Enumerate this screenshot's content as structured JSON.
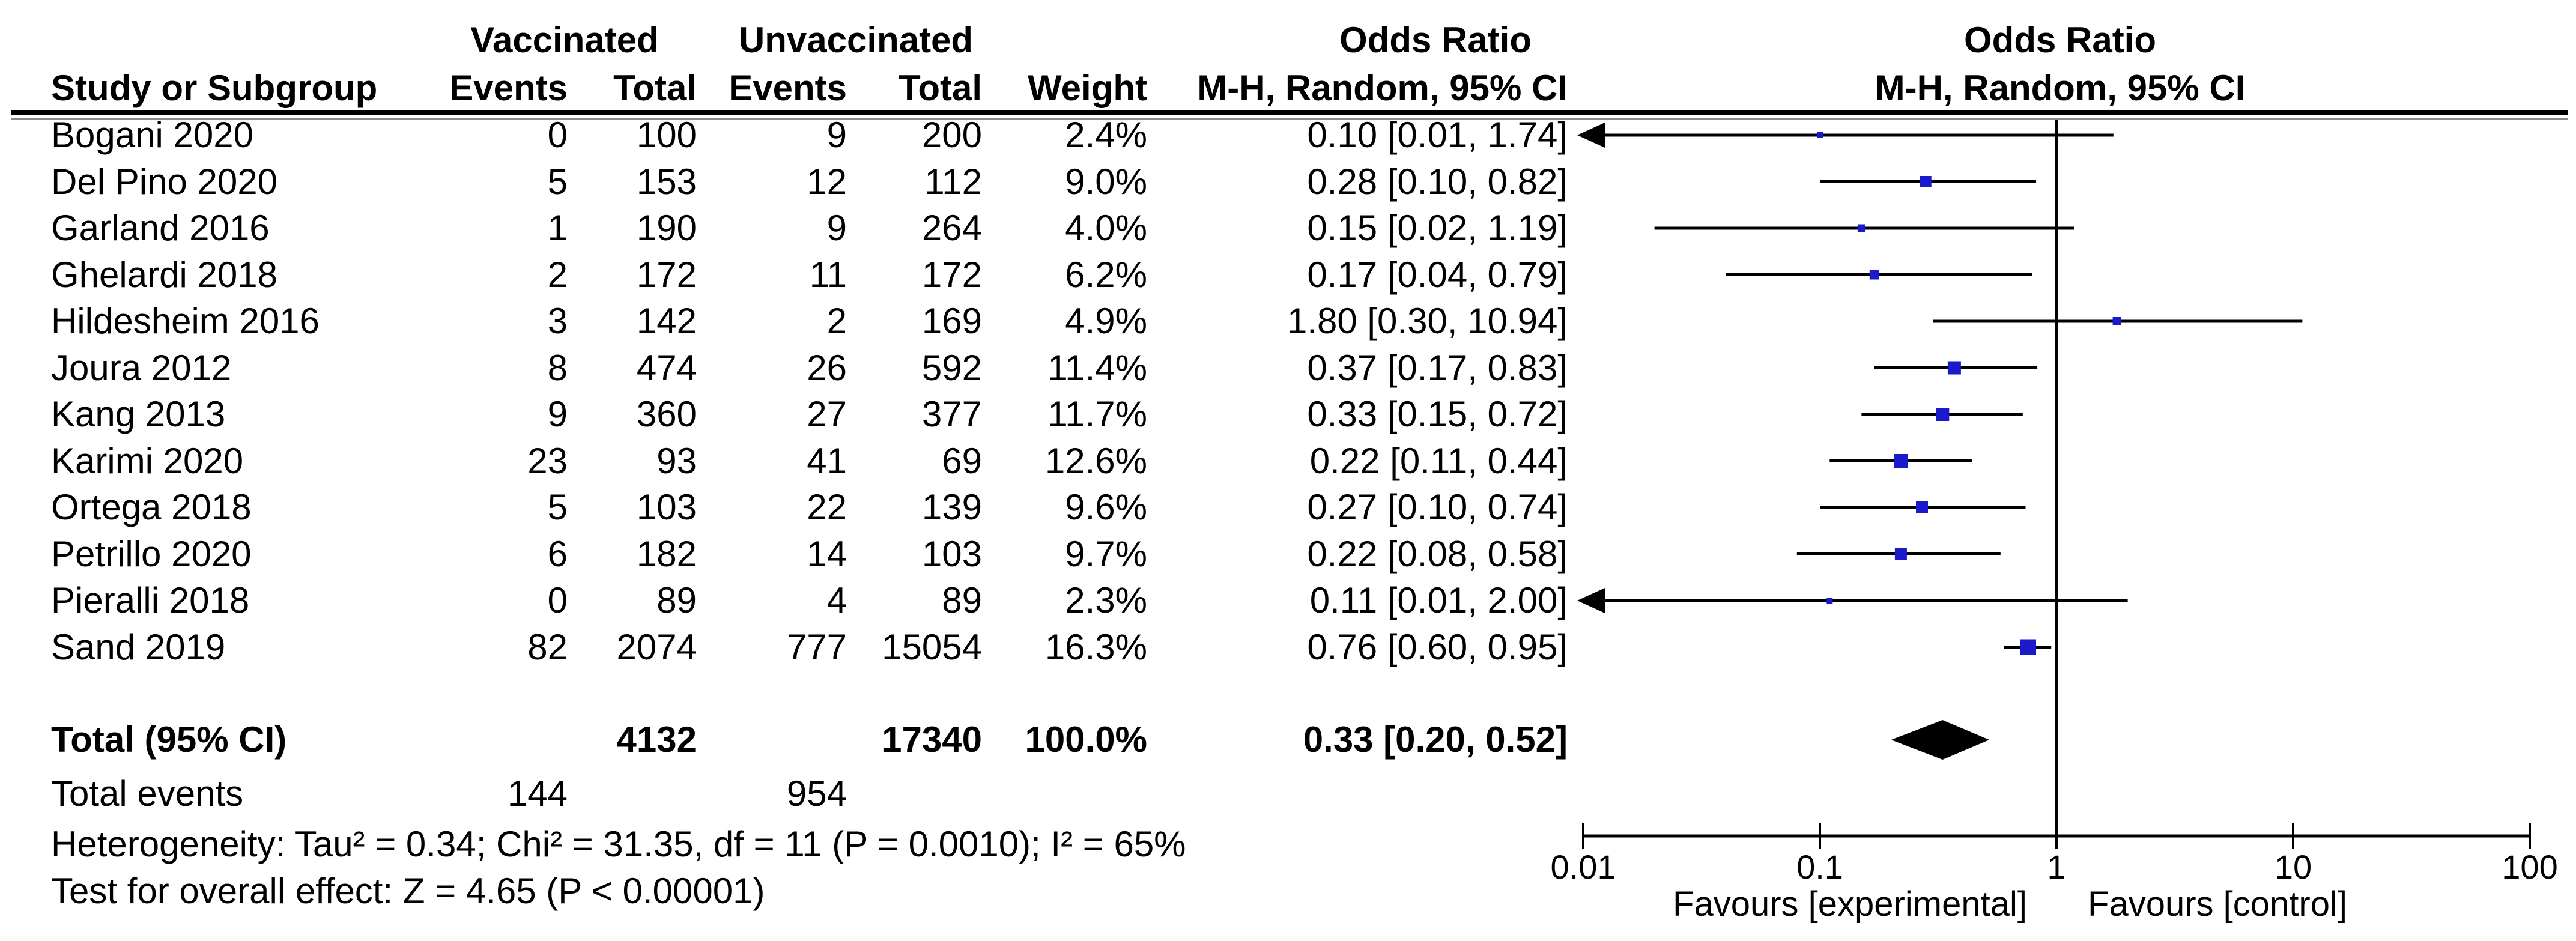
{
  "header": {
    "group1": "Vaccinated",
    "group2": "Unvaccinated",
    "study_col": "Study or Subgroup",
    "events_col_1": "Events",
    "total_col_1": "Total",
    "events_col_2": "Events",
    "total_col_2": "Total",
    "weight_col": "Weight",
    "or_col_title": "Odds Ratio",
    "or_col_sub": "M-H, Random, 95% CI",
    "plot_col_title": "Odds Ratio",
    "plot_col_sub": "M-H, Random, 95% CI"
  },
  "totals_row": {
    "label": "Total (95% CI)",
    "v_total": "4132",
    "u_total": "17340",
    "weight": "100.0%",
    "or_text": "0.33 [0.20, 0.52]"
  },
  "total_events_row": {
    "label": "Total events",
    "v_events": "144",
    "u_events": "954"
  },
  "footnotes": {
    "heterogeneity": "Heterogeneity: Tau² = 0.34; Chi² = 31.35, df = 11 (P = 0.0010); I² = 65%",
    "overall_effect": "Test for overall effect: Z = 4.65 (P < 0.00001)"
  },
  "axis": {
    "tick_labels": [
      "0.01",
      "0.1",
      "1",
      "10",
      "100"
    ],
    "tick_values": [
      0.01,
      0.1,
      1,
      10,
      100
    ],
    "favours_left": "Favours [experimental]",
    "favours_right": "Favours [control]"
  },
  "colors": {
    "marker_blue": "#1A1ACC",
    "line_black": "#000000",
    "rule_gray": "#8a8a8a"
  },
  "chart_data": {
    "type": "scatter",
    "subtype": "forest-plot",
    "effect_measure": "Odds Ratio, M-H, Random, 95% CI",
    "x_scale": "log10",
    "xlim": [
      0.01,
      100
    ],
    "x_ticks": [
      0.01,
      0.1,
      1,
      10,
      100
    ],
    "null_line": 1,
    "studies": [
      {
        "name": "Bogani 2020",
        "v_events": "0",
        "v_total": "100",
        "u_events": "9",
        "u_total": "200",
        "weight": "2.4%",
        "weight_pct": 2.4,
        "or_text": "0.10 [0.01, 1.74]",
        "or": 0.1,
        "ci_low": 0.01,
        "ci_high": 1.74,
        "clipped_low": true
      },
      {
        "name": "Del Pino 2020",
        "v_events": "5",
        "v_total": "153",
        "u_events": "12",
        "u_total": "112",
        "weight": "9.0%",
        "weight_pct": 9.0,
        "or_text": "0.28 [0.10, 0.82]",
        "or": 0.28,
        "ci_low": 0.1,
        "ci_high": 0.82,
        "clipped_low": false
      },
      {
        "name": "Garland 2016",
        "v_events": "1",
        "v_total": "190",
        "u_events": "9",
        "u_total": "264",
        "weight": "4.0%",
        "weight_pct": 4.0,
        "or_text": "0.15 [0.02, 1.19]",
        "or": 0.15,
        "ci_low": 0.02,
        "ci_high": 1.19,
        "clipped_low": false
      },
      {
        "name": "Ghelardi 2018",
        "v_events": "2",
        "v_total": "172",
        "u_events": "11",
        "u_total": "172",
        "weight": "6.2%",
        "weight_pct": 6.2,
        "or_text": "0.17 [0.04, 0.79]",
        "or": 0.17,
        "ci_low": 0.04,
        "ci_high": 0.79,
        "clipped_low": false
      },
      {
        "name": "Hildesheim 2016",
        "v_events": "3",
        "v_total": "142",
        "u_events": "2",
        "u_total": "169",
        "weight": "4.9%",
        "weight_pct": 4.9,
        "or_text": "1.80 [0.30, 10.94]",
        "or": 1.8,
        "ci_low": 0.3,
        "ci_high": 10.94,
        "clipped_low": false
      },
      {
        "name": "Joura 2012",
        "v_events": "8",
        "v_total": "474",
        "u_events": "26",
        "u_total": "592",
        "weight": "11.4%",
        "weight_pct": 11.4,
        "or_text": "0.37 [0.17, 0.83]",
        "or": 0.37,
        "ci_low": 0.17,
        "ci_high": 0.83,
        "clipped_low": false
      },
      {
        "name": "Kang 2013",
        "v_events": "9",
        "v_total": "360",
        "u_events": "27",
        "u_total": "377",
        "weight": "11.7%",
        "weight_pct": 11.7,
        "or_text": "0.33 [0.15, 0.72]",
        "or": 0.33,
        "ci_low": 0.15,
        "ci_high": 0.72,
        "clipped_low": false
      },
      {
        "name": "Karimi 2020",
        "v_events": "23",
        "v_total": "93",
        "u_events": "41",
        "u_total": "69",
        "weight": "12.6%",
        "weight_pct": 12.6,
        "or_text": "0.22 [0.11, 0.44]",
        "or": 0.22,
        "ci_low": 0.11,
        "ci_high": 0.44,
        "clipped_low": false
      },
      {
        "name": "Ortega 2018",
        "v_events": "5",
        "v_total": "103",
        "u_events": "22",
        "u_total": "139",
        "weight": "9.6%",
        "weight_pct": 9.6,
        "or_text": "0.27 [0.10, 0.74]",
        "or": 0.27,
        "ci_low": 0.1,
        "ci_high": 0.74,
        "clipped_low": false
      },
      {
        "name": "Petrillo 2020",
        "v_events": "6",
        "v_total": "182",
        "u_events": "14",
        "u_total": "103",
        "weight": "9.7%",
        "weight_pct": 9.7,
        "or_text": "0.22 [0.08, 0.58]",
        "or": 0.22,
        "ci_low": 0.08,
        "ci_high": 0.58,
        "clipped_low": false
      },
      {
        "name": "Pieralli 2018",
        "v_events": "0",
        "v_total": "89",
        "u_events": "4",
        "u_total": "89",
        "weight": "2.3%",
        "weight_pct": 2.3,
        "or_text": "0.11 [0.01, 2.00]",
        "or": 0.11,
        "ci_low": 0.01,
        "ci_high": 2.0,
        "clipped_low": true
      },
      {
        "name": "Sand 2019",
        "v_events": "82",
        "v_total": "2074",
        "u_events": "777",
        "u_total": "15054",
        "weight": "16.3%",
        "weight_pct": 16.3,
        "or_text": "0.76 [0.60, 0.95]",
        "or": 0.76,
        "ci_low": 0.6,
        "ci_high": 0.95,
        "clipped_low": false
      }
    ],
    "total": {
      "or": 0.33,
      "ci_low": 0.2,
      "ci_high": 0.52,
      "weight_pct": 100.0
    }
  }
}
